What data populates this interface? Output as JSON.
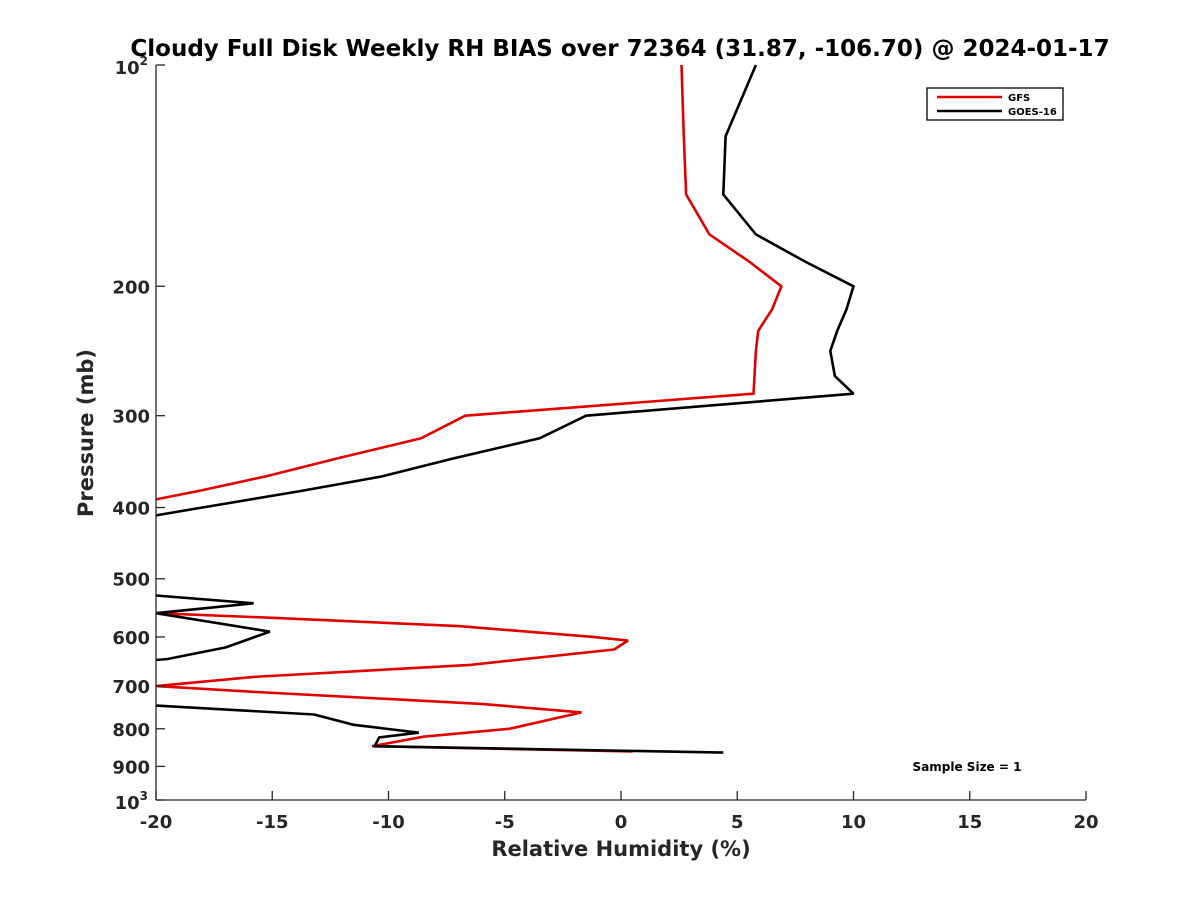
{
  "chart_data": {
    "type": "line",
    "title": "Cloudy Full Disk Weekly RH BIAS over 72364 (31.87, -106.70) @ 2024-01-17",
    "xlabel": "Relative Humidity (%)",
    "ylabel": "Pressure (mb)",
    "xlim": [
      -20,
      20
    ],
    "ylim": [
      100,
      1000
    ],
    "y_scale": "log",
    "y_reversed": true,
    "x_ticks": [
      -20,
      -15,
      -10,
      -5,
      0,
      5,
      10,
      15,
      20
    ],
    "x_tick_labels": [
      "-20",
      "-15",
      "-10",
      "-5",
      "0",
      "5",
      "10",
      "15",
      "20"
    ],
    "y_ticks": [
      {
        "value": 100,
        "base": "10",
        "exp": "2"
      },
      {
        "value": 200,
        "label": "200"
      },
      {
        "value": 300,
        "label": "300"
      },
      {
        "value": 400,
        "label": "400"
      },
      {
        "value": 500,
        "label": "500"
      },
      {
        "value": 600,
        "label": "600"
      },
      {
        "value": 700,
        "label": "700"
      },
      {
        "value": 800,
        "label": "800"
      },
      {
        "value": 900,
        "label": "900"
      },
      {
        "value": 1000,
        "base": "10",
        "exp": "3"
      }
    ],
    "grid": false,
    "legend_position": "top-right",
    "annotation": "Sample Size = 1",
    "series": [
      {
        "name": "GFS",
        "color": "#e00000",
        "segments": [
          [
            [
              2.6,
              100
            ],
            [
              2.7,
              125
            ],
            [
              2.8,
              150
            ],
            [
              3.8,
              170
            ],
            [
              5.5,
              185
            ],
            [
              6.9,
              200
            ],
            [
              6.5,
              215
            ],
            [
              5.9,
              230
            ],
            [
              5.8,
              245
            ],
            [
              5.7,
              280
            ],
            [
              -6.7,
              300
            ],
            [
              -8.6,
              322
            ],
            [
              -12.2,
              343
            ],
            [
              -15.3,
              363
            ],
            [
              -18.2,
              380
            ],
            [
              -20,
              390
            ]
          ],
          [
            [
              -20,
              557
            ],
            [
              -15,
              565
            ],
            [
              -7,
              580
            ],
            [
              -1.2,
              600
            ],
            [
              0.3,
              607
            ],
            [
              -0.3,
              624
            ],
            [
              -6.5,
              655
            ],
            [
              -15.8,
              680
            ],
            [
              -20,
              700
            ],
            [
              -16,
              712
            ],
            [
              -6,
              740
            ],
            [
              -1.7,
              760
            ],
            [
              -4.8,
              800
            ],
            [
              -8.5,
              820
            ],
            [
              -10.7,
              845
            ],
            [
              0.5,
              859
            ]
          ]
        ]
      },
      {
        "name": "GOES-16",
        "color": "#000000",
        "segments": [
          [
            [
              5.8,
              100
            ],
            [
              4.5,
              125
            ],
            [
              4.4,
              150
            ],
            [
              5.8,
              170
            ],
            [
              7.9,
              185
            ],
            [
              10,
              200
            ],
            [
              9.7,
              215
            ],
            [
              9.3,
              230
            ],
            [
              9.0,
              245
            ],
            [
              9.2,
              265
            ],
            [
              10,
              280
            ],
            [
              -1.5,
              300
            ],
            [
              -3.5,
              322
            ],
            [
              -7.2,
              343
            ],
            [
              -10.3,
              363
            ],
            [
              -13.8,
              380
            ],
            [
              -18,
              400
            ],
            [
              -20,
              410
            ]
          ],
          [
            [
              -20,
              527
            ],
            [
              -15.8,
              540
            ],
            [
              -20,
              557
            ],
            [
              -15.1,
              590
            ],
            [
              -17,
              620
            ],
            [
              -19.5,
              643
            ],
            [
              -20,
              645
            ]
          ],
          [
            [
              -20,
              744
            ],
            [
              -13.2,
              765
            ],
            [
              -11.5,
              790
            ],
            [
              -8.7,
              810
            ],
            [
              -10.4,
              822
            ],
            [
              -10.6,
              845
            ],
            [
              4.4,
              862
            ]
          ]
        ]
      }
    ]
  }
}
